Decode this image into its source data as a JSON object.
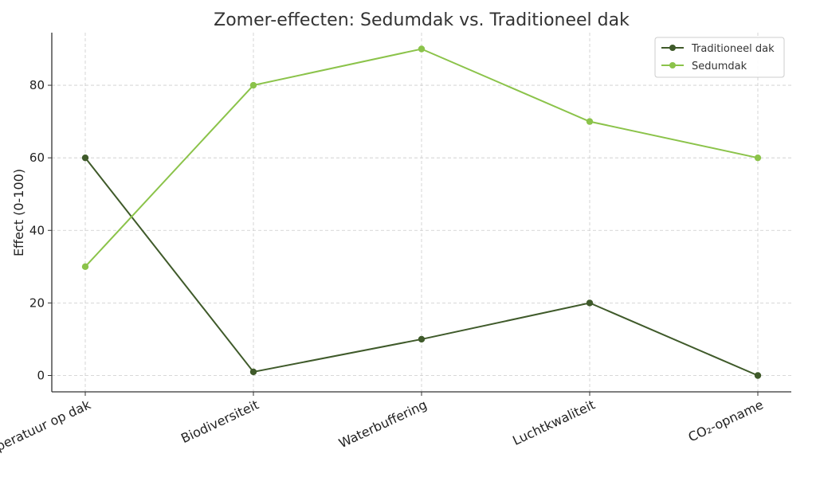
{
  "chart_data": {
    "type": "line",
    "title": "Zomer-effecten: Sedumdak vs. Traditioneel dak",
    "xlabel": "",
    "ylabel": "Effect (0-100)",
    "categories": [
      "Temperatuur op dak",
      "Biodiversiteit",
      "Waterbuffering",
      "Luchtkwaliteit",
      "CO₂-opname"
    ],
    "yticks": [
      0,
      20,
      40,
      60,
      80
    ],
    "ylim": [
      -4.5,
      94.5
    ],
    "grid": true,
    "legend_position": "top-right",
    "series": [
      {
        "name": "Traditioneel dak",
        "color": "#3f5a2a",
        "values": [
          60,
          1,
          10,
          20,
          0
        ]
      },
      {
        "name": "Sedumdak",
        "color": "#8bc34a",
        "values": [
          30,
          80,
          90,
          70,
          60
        ]
      }
    ]
  }
}
